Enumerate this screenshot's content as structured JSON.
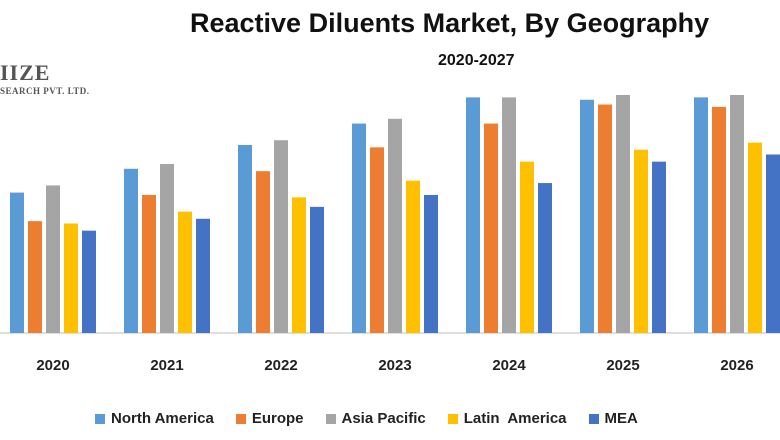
{
  "header": {
    "title": "Reactive Diluents Market, By Geography",
    "subtitle": "2020-2027"
  },
  "logo": {
    "main": "IIZE",
    "sub": "SEARCH PVT. LTD."
  },
  "chart_data": {
    "type": "bar",
    "title": "Reactive Diluents Market, By Geography",
    "subtitle": "2020-2027",
    "xlabel": "",
    "ylabel": "",
    "ylim": [
      0,
      100
    ],
    "grid": false,
    "legend_position": "bottom",
    "categories": [
      "2020",
      "2021",
      "2022",
      "2023",
      "2024",
      "2025",
      "2026"
    ],
    "series": [
      {
        "name": "North America",
        "color": "#5B9BD5",
        "values": [
          59,
          69,
          79,
          88,
          99,
          98,
          99
        ]
      },
      {
        "name": "Europe",
        "color": "#ED7D31",
        "values": [
          47,
          58,
          68,
          78,
          88,
          96,
          95
        ]
      },
      {
        "name": "Asia Pacific",
        "color": "#A5A5A5",
        "values": [
          62,
          71,
          81,
          90,
          99,
          100,
          100
        ]
      },
      {
        "name": "Latin  America",
        "color": "#FFC000",
        "values": [
          46,
          51,
          57,
          64,
          72,
          77,
          80
        ]
      },
      {
        "name": "MEA",
        "color": "#4472C4",
        "values": [
          43,
          48,
          53,
          58,
          63,
          72,
          75
        ]
      }
    ]
  }
}
